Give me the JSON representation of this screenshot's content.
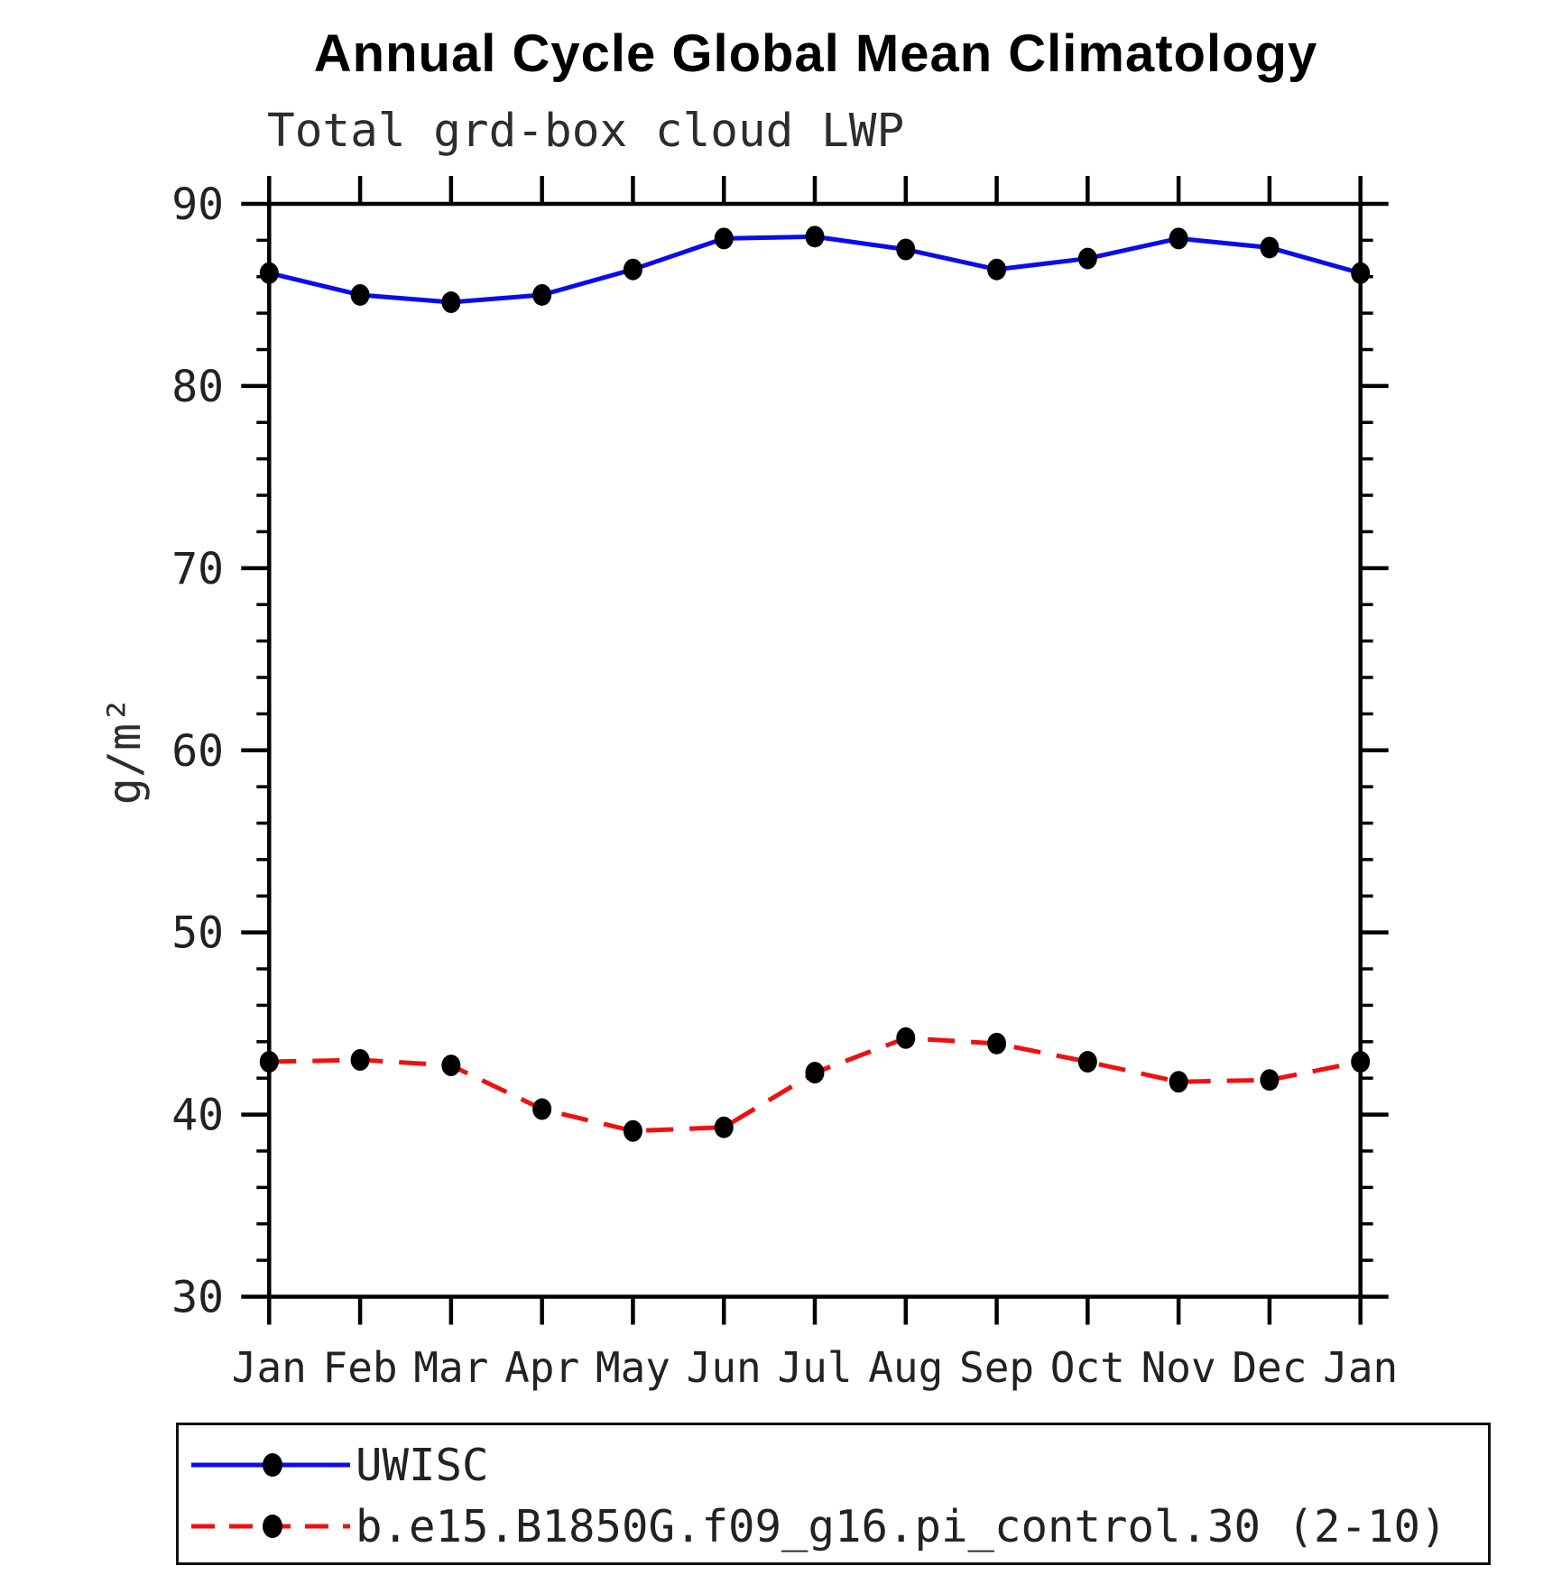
{
  "header": {
    "title": "Annual Cycle Global Mean Climatology",
    "subtitle": "Total grd-box cloud LWP"
  },
  "chart_data": {
    "type": "line",
    "title": "Annual Cycle Global Mean Climatology",
    "subtitle": "Total grd-box cloud LWP",
    "xlabel": "",
    "ylabel": "g/m²",
    "categories": [
      "Jan",
      "Feb",
      "Mar",
      "Apr",
      "May",
      "Jun",
      "Jul",
      "Aug",
      "Sep",
      "Oct",
      "Nov",
      "Dec",
      "Jan"
    ],
    "series": [
      {
        "name": "UWISC",
        "color": "#0b0bee",
        "line_style": "solid",
        "marker": "filled-circle",
        "marker_color": "#000000",
        "values": [
          86.2,
          85.0,
          84.6,
          85.0,
          86.4,
          88.1,
          88.2,
          87.5,
          86.4,
          87.0,
          88.1,
          87.6,
          86.2
        ]
      },
      {
        "name": "b.e15.B1850G.f09_g16.pi_control.30 (2-10)",
        "color": "#ee1111",
        "line_style": "dashed",
        "marker": "filled-circle",
        "marker_color": "#000000",
        "values": [
          42.9,
          43.0,
          42.7,
          40.3,
          39.1,
          39.3,
          42.3,
          44.2,
          43.9,
          42.9,
          41.8,
          41.9,
          42.9
        ]
      }
    ],
    "ylim": [
      30,
      90
    ],
    "ytick_major": [
      30,
      40,
      50,
      60,
      70,
      80,
      90
    ],
    "ytick_minor_step": 2,
    "grid": false,
    "legend_position": "bottom-left-box",
    "axis_color": "#000000",
    "background_color": "#ffffff"
  }
}
